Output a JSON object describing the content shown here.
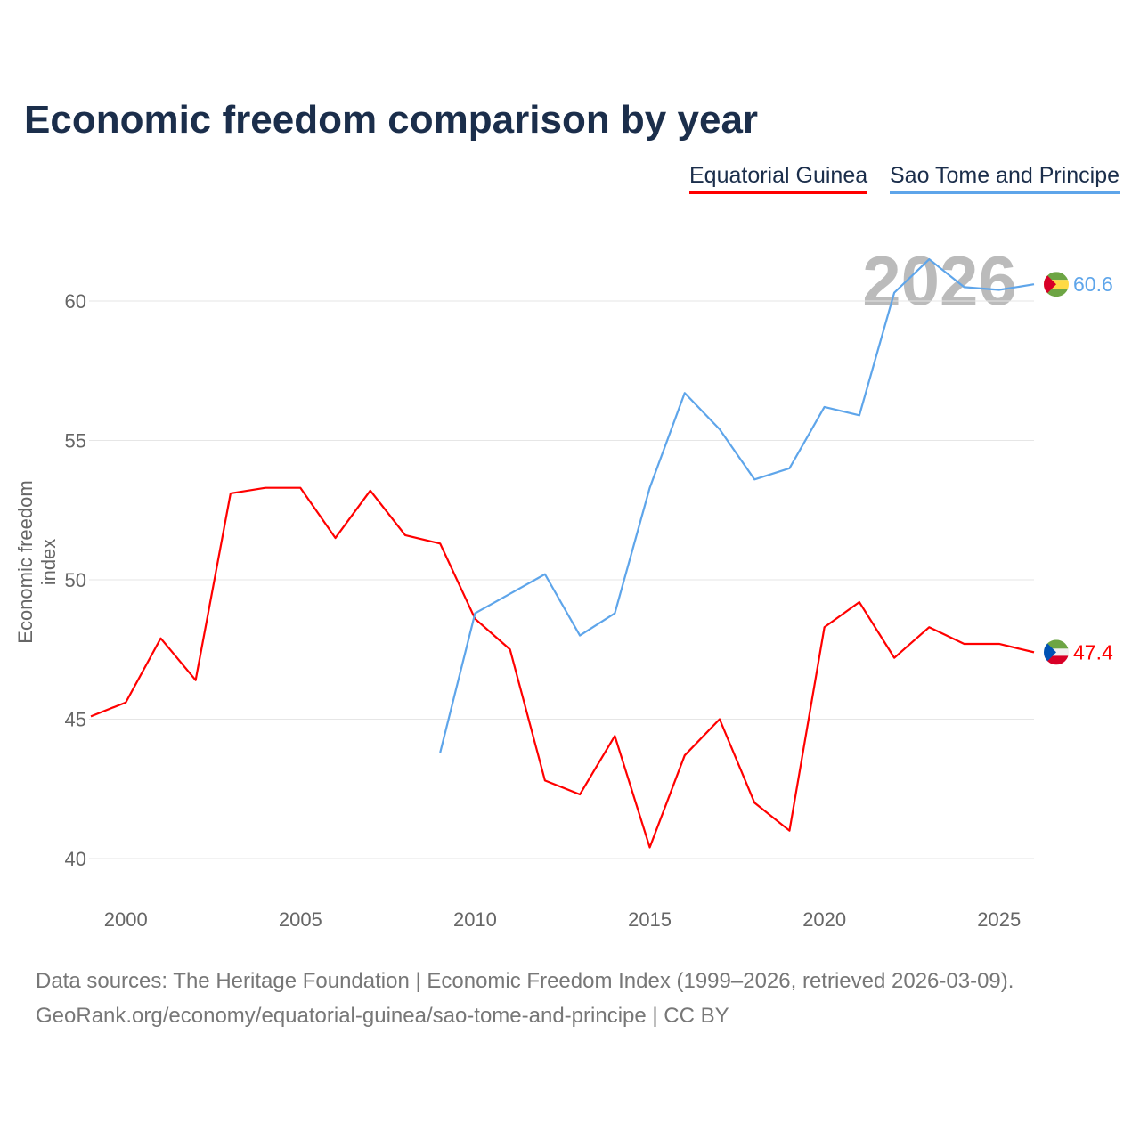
{
  "chart_data": {
    "type": "line",
    "title": "Economic freedom comparison by year",
    "xlabel": "",
    "ylabel": "Economic freedom index",
    "xlim": [
      1999,
      2026
    ],
    "ylim": [
      40,
      62
    ],
    "yticks": [
      40,
      45,
      50,
      55,
      60
    ],
    "xticks": [
      2000,
      2005,
      2010,
      2015,
      2020,
      2025
    ],
    "grid": true,
    "legend_position": "top-right",
    "watermark_year": "2026",
    "series": [
      {
        "name": "Equatorial Guinea",
        "color": "#ff0000",
        "end_label": "47.4",
        "x": [
          1999,
          2000,
          2001,
          2002,
          2003,
          2004,
          2005,
          2006,
          2007,
          2008,
          2009,
          2010,
          2011,
          2012,
          2013,
          2014,
          2015,
          2016,
          2017,
          2018,
          2019,
          2020,
          2021,
          2022,
          2023,
          2024,
          2025,
          2026
        ],
        "values": [
          45.1,
          45.6,
          47.9,
          46.4,
          53.1,
          53.3,
          53.3,
          51.5,
          53.2,
          51.6,
          51.3,
          48.6,
          47.5,
          42.8,
          42.3,
          44.4,
          40.4,
          43.7,
          45.0,
          42.0,
          41.0,
          48.3,
          49.2,
          47.2,
          48.3,
          47.7,
          47.7,
          47.4
        ]
      },
      {
        "name": "Sao Tome and Principe",
        "color": "#5ea5ea",
        "end_label": "60.6",
        "x": [
          2009,
          2010,
          2011,
          2012,
          2013,
          2014,
          2015,
          2016,
          2017,
          2018,
          2019,
          2020,
          2021,
          2022,
          2023,
          2024,
          2025,
          2026
        ],
        "values": [
          43.8,
          48.8,
          49.5,
          50.2,
          48.0,
          48.8,
          53.3,
          56.7,
          55.4,
          53.6,
          54.0,
          56.2,
          55.9,
          60.3,
          61.5,
          60.5,
          60.4,
          60.6
        ]
      }
    ]
  },
  "footer": {
    "line1": "Data sources: The Heritage Foundation | Economic Freedom Index (1999–2026, retrieved 2026-03-09).",
    "line2": "GeoRank.org/economy/equatorial-guinea/sao-tome-and-principe | CC BY"
  }
}
